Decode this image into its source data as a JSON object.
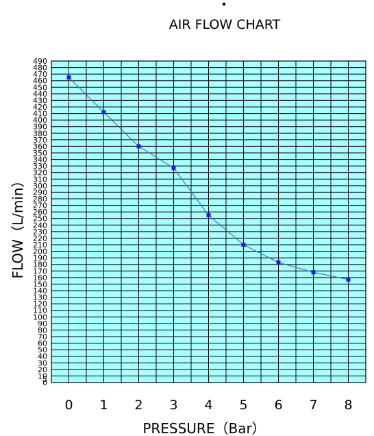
{
  "chart_data": {
    "type": "line",
    "title": "AIR FLOW CHART",
    "xlabel": "PRESSURE（Bar）",
    "ylabel": "FLOW（L/min）",
    "x": [
      0,
      1,
      2,
      3,
      4,
      5,
      6,
      7,
      8
    ],
    "series": [
      {
        "values": [
          465,
          412,
          360,
          327,
          255,
          210,
          183,
          168,
          157
        ]
      }
    ],
    "xlim": [
      -0.5,
      8.5
    ],
    "ylim": [
      0,
      490
    ],
    "y_ticks": [
      0,
      5,
      10,
      20,
      30,
      40,
      50,
      60,
      70,
      80,
      90,
      100,
      110,
      120,
      130,
      140,
      150,
      160,
      170,
      180,
      190,
      200,
      210,
      220,
      230,
      240,
      250,
      260,
      270,
      280,
      290,
      300,
      310,
      320,
      330,
      340,
      350,
      360,
      370,
      380,
      390,
      400,
      410,
      420,
      430,
      440,
      450,
      460,
      470,
      480,
      490
    ],
    "x_ticks": [
      0,
      1,
      2,
      3,
      4,
      5,
      6,
      7,
      8
    ],
    "grid": true,
    "legend": "none",
    "colors": {
      "plot_background": "#aaffff",
      "grid": "#000000",
      "line": "#4a6dc4",
      "marker": "#1a1aee"
    }
  }
}
